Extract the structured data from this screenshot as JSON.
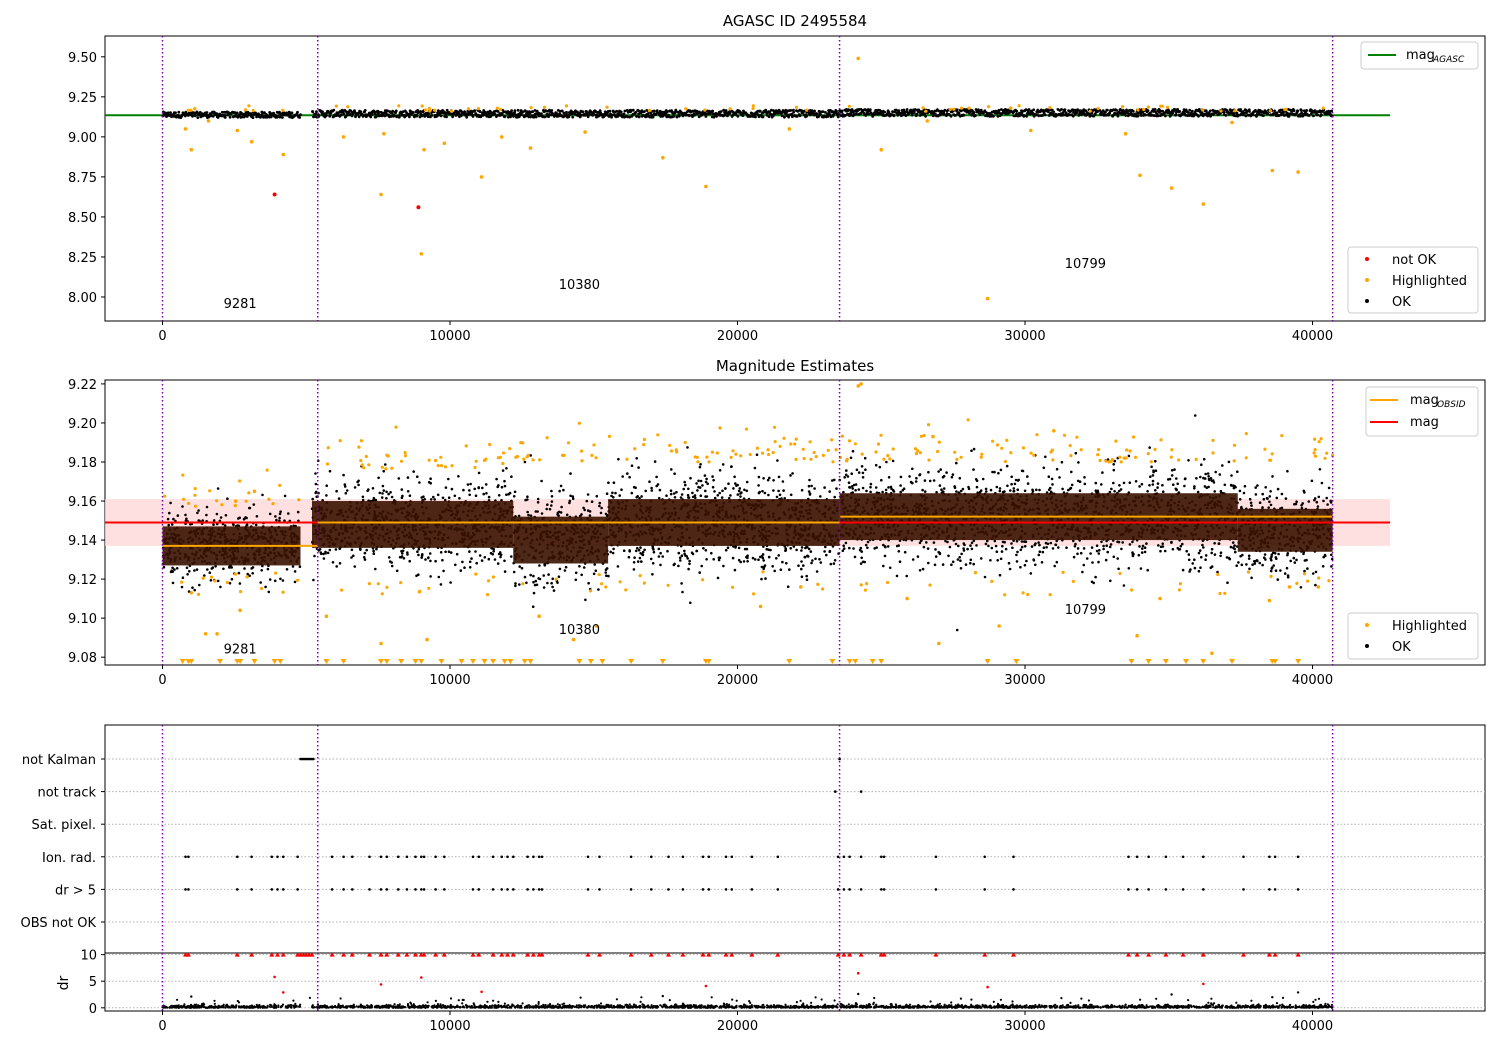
{
  "chart_data": [
    {
      "type": "scatter",
      "title": "AGASC ID 2495584",
      "xlim": [
        -2000,
        46000
      ],
      "ylim": [
        7.85,
        9.63
      ],
      "xticks": [
        0,
        10000,
        20000,
        30000,
        40000
      ],
      "yticks": [
        8.0,
        8.25,
        8.5,
        8.75,
        9.0,
        9.25,
        9.5
      ],
      "ytick_labels": [
        "8.00",
        "8.25",
        "8.50",
        "8.75",
        "9.00",
        "9.25",
        "9.50"
      ],
      "xtick_labels": [
        "0",
        "10000",
        "20000",
        "30000",
        "40000"
      ],
      "obs_boundaries": [
        0,
        5400,
        23550,
        40700
      ],
      "obs_labels": [
        {
          "text": "9281",
          "x": 2700,
          "y": 7.93
        },
        {
          "text": "10380",
          "x": 14500,
          "y": 8.05
        },
        {
          "text": "10799",
          "x": 32100,
          "y": 8.18
        }
      ],
      "reference_line": {
        "name": "mag_AGASC",
        "y": 9.135,
        "x_range": [
          -2000,
          42700
        ],
        "color": "#008000"
      },
      "segments": [
        {
          "x0": 0,
          "x1": 4800,
          "center": 9.138,
          "spread": 0.018
        },
        {
          "x0": 5200,
          "x1": 23550,
          "center": 9.145,
          "spread": 0.022
        },
        {
          "x0": 23550,
          "x1": 40700,
          "center": 9.15,
          "spread": 0.022
        }
      ],
      "not_ok_points": [
        {
          "x": 3900,
          "y": 8.64
        },
        {
          "x": 8900,
          "y": 8.56
        }
      ],
      "highlighted_points": [
        {
          "x": 800,
          "y": 9.05
        },
        {
          "x": 1000,
          "y": 8.92
        },
        {
          "x": 2600,
          "y": 9.04
        },
        {
          "x": 3100,
          "y": 8.97
        },
        {
          "x": 4200,
          "y": 8.89
        },
        {
          "x": 6300,
          "y": 9.0
        },
        {
          "x": 7600,
          "y": 8.64
        },
        {
          "x": 9000,
          "y": 8.27
        },
        {
          "x": 9100,
          "y": 8.92
        },
        {
          "x": 9800,
          "y": 8.96
        },
        {
          "x": 11100,
          "y": 8.75
        },
        {
          "x": 11800,
          "y": 9.0
        },
        {
          "x": 12800,
          "y": 8.93
        },
        {
          "x": 17400,
          "y": 8.87
        },
        {
          "x": 18900,
          "y": 8.69
        },
        {
          "x": 24200,
          "y": 9.49
        },
        {
          "x": 25000,
          "y": 8.92
        },
        {
          "x": 28700,
          "y": 7.99
        },
        {
          "x": 33500,
          "y": 9.02
        },
        {
          "x": 34000,
          "y": 8.76
        },
        {
          "x": 35100,
          "y": 8.68
        },
        {
          "x": 36200,
          "y": 8.58
        },
        {
          "x": 38600,
          "y": 8.79
        },
        {
          "x": 39500,
          "y": 8.78
        },
        {
          "x": 1600,
          "y": 9.1
        },
        {
          "x": 7700,
          "y": 9.02
        },
        {
          "x": 14700,
          "y": 9.03
        },
        {
          "x": 21800,
          "y": 9.05
        },
        {
          "x": 26600,
          "y": 9.1
        },
        {
          "x": 30200,
          "y": 9.04
        },
        {
          "x": 37200,
          "y": 9.09
        },
        {
          "x": 29500,
          "y": 9.18
        }
      ],
      "legends": [
        {
          "position": "top-right",
          "entries": [
            {
              "label": "mag",
              "sub": "AGASC",
              "color": "#008000",
              "kind": "line"
            }
          ]
        },
        {
          "position": "bottom-right",
          "entries": [
            {
              "label": "not OK",
              "color": "#ff0000",
              "kind": "dot"
            },
            {
              "label": "Highlighted",
              "color": "#ffa500",
              "kind": "dot"
            },
            {
              "label": "OK",
              "color": "#000000",
              "kind": "dot"
            }
          ]
        }
      ]
    },
    {
      "type": "scatter",
      "title": "Magnitude Estimates",
      "xlim": [
        -2000,
        46000
      ],
      "ylim": [
        9.076,
        9.222
      ],
      "xticks": [
        0,
        10000,
        20000,
        30000,
        40000
      ],
      "xtick_labels": [
        "0",
        "10000",
        "20000",
        "30000",
        "40000"
      ],
      "yticks": [
        9.08,
        9.1,
        9.12,
        9.14,
        9.16,
        9.18,
        9.2,
        9.22
      ],
      "ytick_labels": [
        "9.08",
        "9.10",
        "9.12",
        "9.14",
        "9.16",
        "9.18",
        "9.20",
        "9.22"
      ],
      "obs_boundaries": [
        0,
        5400,
        23550,
        40700
      ],
      "obs_labels": [
        {
          "text": "9281",
          "x": 2700,
          "y": 9.082
        },
        {
          "text": "10380",
          "x": 14500,
          "y": 9.092
        },
        {
          "text": "10799",
          "x": 32100,
          "y": 9.102
        }
      ],
      "mag_line": {
        "name": "mag",
        "y": 9.149,
        "band": [
          9.137,
          9.161
        ],
        "x_range": [
          -2000,
          42700
        ],
        "color": "#ff0000"
      },
      "mag_obsid_lines": [
        {
          "x0": 0,
          "x1": 5400,
          "y": 9.137
        },
        {
          "x0": 5400,
          "x1": 23550,
          "y": 9.149
        },
        {
          "x0": 23550,
          "x1": 40700,
          "y": 9.152
        }
      ],
      "segments": [
        {
          "x0": 0,
          "x1": 4800,
          "center": 9.137,
          "core": 0.01,
          "spread": 0.016
        },
        {
          "x0": 5200,
          "x1": 12200,
          "center": 9.148,
          "core": 0.012,
          "spread": 0.02
        },
        {
          "x0": 12200,
          "x1": 15500,
          "center": 9.14,
          "core": 0.012,
          "spread": 0.022
        },
        {
          "x0": 15500,
          "x1": 23550,
          "center": 9.149,
          "core": 0.012,
          "spread": 0.022
        },
        {
          "x0": 23550,
          "x1": 37400,
          "center": 9.152,
          "core": 0.012,
          "spread": 0.022
        },
        {
          "x0": 37400,
          "x1": 40700,
          "center": 9.145,
          "core": 0.011,
          "spread": 0.02
        }
      ],
      "outlier_marker_xs": [
        700,
        900,
        1000,
        2000,
        2600,
        2700,
        3200,
        3900,
        4100,
        5700,
        6300,
        7600,
        7800,
        8300,
        8800,
        9000,
        9700,
        10400,
        10800,
        11200,
        11500,
        11900,
        12100,
        12600,
        12800,
        14500,
        14900,
        15300,
        16300,
        17400,
        18900,
        19000,
        21800,
        23300,
        23900,
        24100,
        24700,
        25000,
        28700,
        29700,
        33700,
        34300,
        34900,
        35600,
        36200,
        37200,
        38600,
        38700,
        39500
      ],
      "highlighted_extra": [
        {
          "x": 1000,
          "y": 9.113
        },
        {
          "x": 1500,
          "y": 9.092
        },
        {
          "x": 1900,
          "y": 9.092
        },
        {
          "x": 2700,
          "y": 9.104
        },
        {
          "x": 5700,
          "y": 9.101
        },
        {
          "x": 7600,
          "y": 9.087
        },
        {
          "x": 9200,
          "y": 9.089
        },
        {
          "x": 13100,
          "y": 9.101
        },
        {
          "x": 14300,
          "y": 9.089
        },
        {
          "x": 15100,
          "y": 9.096
        },
        {
          "x": 20800,
          "y": 9.106
        },
        {
          "x": 22200,
          "y": 9.116
        },
        {
          "x": 24300,
          "y": 9.22
        },
        {
          "x": 24200,
          "y": 9.219
        },
        {
          "x": 25900,
          "y": 9.11
        },
        {
          "x": 27000,
          "y": 9.087
        },
        {
          "x": 29100,
          "y": 9.096
        },
        {
          "x": 33900,
          "y": 9.091
        },
        {
          "x": 34700,
          "y": 9.11
        },
        {
          "x": 36500,
          "y": 9.082
        },
        {
          "x": 38500,
          "y": 9.109
        },
        {
          "x": 39200,
          "y": 9.116
        },
        {
          "x": 40200,
          "y": 9.116
        },
        {
          "x": 3200,
          "y": 9.165
        },
        {
          "x": 26800,
          "y": 9.193
        },
        {
          "x": 31000,
          "y": 9.196
        }
      ],
      "legends": [
        {
          "position": "top-right",
          "entries": [
            {
              "label": "mag",
              "sub": "OBSID",
              "color": "#ffa500",
              "kind": "line"
            },
            {
              "label": "mag",
              "sub": "",
              "color": "#ff0000",
              "kind": "line"
            }
          ]
        },
        {
          "position": "bottom-right",
          "entries": [
            {
              "label": "Highlighted",
              "color": "#ffa500",
              "kind": "dot"
            },
            {
              "label": "OK",
              "color": "#000000",
              "kind": "dot"
            }
          ]
        }
      ]
    },
    {
      "type": "scatter",
      "xlim": [
        -2000,
        46000
      ],
      "xticks": [
        0,
        10000,
        20000,
        30000,
        40000
      ],
      "xtick_labels": [
        "0",
        "10000",
        "20000",
        "30000",
        "40000"
      ],
      "obs_boundaries": [
        0,
        5400,
        23550,
        40700
      ],
      "flag_categories": [
        "not Kalman",
        "not track",
        "Sat. pixel.",
        "Ion. rad.",
        "dr > 5",
        "OBS not OK"
      ],
      "flag_points": {
        "not Kalman": [
          4800,
          4850,
          4900,
          4950,
          5000,
          5050,
          5100,
          5150,
          5200,
          5250,
          23550
        ],
        "not track": [
          23400,
          24300
        ],
        "Sat. pixel.": [],
        "Ion. rad.": [
          800,
          900,
          2600,
          3100,
          3800,
          4000,
          4200,
          4700,
          5900,
          6300,
          6600,
          7200,
          7600,
          7800,
          8200,
          8500,
          8800,
          9000,
          9100,
          9500,
          9800,
          10800,
          11000,
          11500,
          11800,
          12000,
          12200,
          12700,
          12900,
          13100,
          13200,
          14800,
          15200,
          16300,
          17000,
          17600,
          18100,
          18800,
          19000,
          19600,
          19800,
          20500,
          21400,
          23500,
          23700,
          23900,
          24300,
          25000,
          25100,
          26900,
          28600,
          29600,
          33600,
          33900,
          34300,
          34900,
          35500,
          36200,
          37600,
          38500,
          38700,
          39500
        ],
        "dr > 5": [
          800,
          900,
          2600,
          3100,
          3800,
          4000,
          4200,
          4700,
          5900,
          6300,
          6600,
          7200,
          7600,
          7800,
          8200,
          8500,
          8800,
          9000,
          9100,
          9500,
          9800,
          10800,
          11000,
          11500,
          11800,
          12000,
          12200,
          12700,
          12900,
          13100,
          13200,
          14800,
          15200,
          16300,
          17000,
          17600,
          18100,
          18800,
          19000,
          19600,
          19800,
          20500,
          21400,
          23500,
          23700,
          23900,
          24300,
          25000,
          25100,
          26900,
          28600,
          29600,
          33600,
          33900,
          34300,
          34900,
          35500,
          36200,
          37600,
          38500,
          38700,
          39500
        ],
        "OBS not OK": []
      }
    },
    {
      "type": "scatter",
      "ylabel": "dr",
      "xlim": [
        -2000,
        46000
      ],
      "ylim": [
        -0.6,
        10.3
      ],
      "xticks": [
        0,
        10000,
        20000,
        30000,
        40000
      ],
      "xtick_labels": [
        "0",
        "10000",
        "20000",
        "30000",
        "40000"
      ],
      "yticks": [
        0,
        5,
        10
      ],
      "ytick_labels": [
        "0",
        "5",
        "10"
      ],
      "obs_boundaries": [
        0,
        5400,
        23550,
        40700
      ],
      "capped_xs": [
        800,
        900,
        2600,
        3100,
        3800,
        4000,
        4200,
        4700,
        4800,
        4900,
        5000,
        5100,
        5200,
        5900,
        6300,
        6600,
        7200,
        7600,
        7800,
        8200,
        8500,
        8800,
        9000,
        9100,
        9500,
        9800,
        10800,
        11000,
        11500,
        11800,
        12000,
        12200,
        12700,
        12900,
        13100,
        13200,
        14800,
        15200,
        16300,
        17000,
        17600,
        18100,
        18800,
        19000,
        19600,
        19800,
        20500,
        21400,
        23500,
        23700,
        23900,
        24300,
        25000,
        25100,
        26900,
        28600,
        29600,
        33600,
        33900,
        34300,
        34900,
        35500,
        36200,
        37600,
        38500,
        38700,
        39500
      ],
      "mid_points": [
        {
          "x": 3900,
          "y": 5.8
        },
        {
          "x": 4200,
          "y": 2.9
        },
        {
          "x": 7600,
          "y": 4.4
        },
        {
          "x": 9000,
          "y": 5.7
        },
        {
          "x": 11100,
          "y": 3.0
        },
        {
          "x": 18900,
          "y": 4.1
        },
        {
          "x": 24200,
          "y": 6.5
        },
        {
          "x": 28700,
          "y": 3.9
        },
        {
          "x": 36200,
          "y": 4.5
        }
      ],
      "dark_points": [
        {
          "x": 1000,
          "y": 2.1
        },
        {
          "x": 17400,
          "y": 2.2
        },
        {
          "x": 24200,
          "y": 2.6
        },
        {
          "x": 35100,
          "y": 2.5
        },
        {
          "x": 38600,
          "y": 2.0
        },
        {
          "x": 39500,
          "y": 2.9
        }
      ]
    }
  ]
}
